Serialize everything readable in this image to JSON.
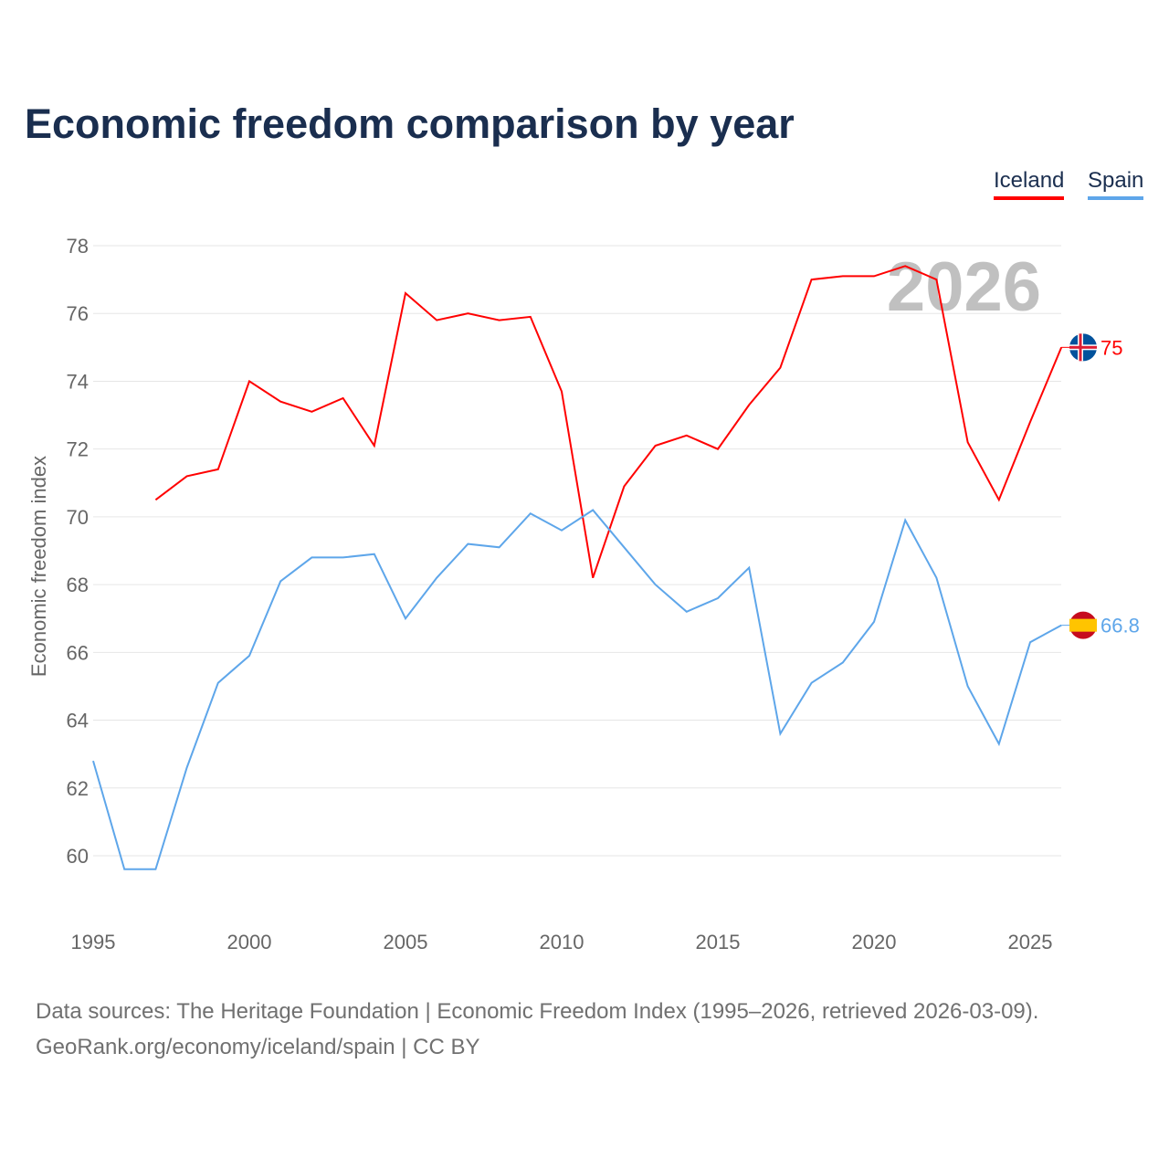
{
  "title": "Economic freedom comparison by year",
  "legend": [
    "Iceland",
    "Spain"
  ],
  "source_line1": "Data sources: The Heritage Foundation | Economic Freedom Index (1995–2026, retrieved 2026-03-09).",
  "source_line2": "GeoRank.org/economy/iceland/spain | CC BY",
  "year_watermark": "2026",
  "chart_data": {
    "type": "line",
    "title": "Economic freedom comparison by year",
    "xlabel": "",
    "ylabel": "Economic freedom index",
    "xlim": [
      1995,
      2026
    ],
    "ylim": [
      58,
      79
    ],
    "xticks": [
      1995,
      2000,
      2005,
      2010,
      2015,
      2020,
      2025
    ],
    "yticks": [
      60,
      62,
      64,
      66,
      68,
      70,
      72,
      74,
      76,
      78
    ],
    "grid": true,
    "legend_position": "top-right",
    "x": [
      1995,
      1996,
      1997,
      1998,
      1999,
      2000,
      2001,
      2002,
      2003,
      2004,
      2005,
      2006,
      2007,
      2008,
      2009,
      2010,
      2011,
      2012,
      2013,
      2014,
      2015,
      2016,
      2017,
      2018,
      2019,
      2020,
      2021,
      2022,
      2023,
      2024,
      2025,
      2026
    ],
    "series": [
      {
        "name": "Iceland",
        "color": "#ff0000",
        "end_label": "75",
        "values": [
          null,
          null,
          70.5,
          71.2,
          71.4,
          74.0,
          73.4,
          73.1,
          73.5,
          72.1,
          76.6,
          75.8,
          76.0,
          75.8,
          75.9,
          73.7,
          68.2,
          70.9,
          72.1,
          72.4,
          72.0,
          73.3,
          74.4,
          77.0,
          77.1,
          77.1,
          77.4,
          77.0,
          72.2,
          70.5,
          72.8,
          75.0
        ]
      },
      {
        "name": "Spain",
        "color": "#5ea6ea",
        "end_label": "66.8",
        "values": [
          62.8,
          59.6,
          59.6,
          62.6,
          65.1,
          65.9,
          68.1,
          68.8,
          68.8,
          68.9,
          67.0,
          68.2,
          69.2,
          69.1,
          70.1,
          69.6,
          70.2,
          69.1,
          68.0,
          67.2,
          67.6,
          68.5,
          63.6,
          65.1,
          65.7,
          66.9,
          69.9,
          68.2,
          65.0,
          63.3,
          66.3,
          66.8
        ]
      }
    ]
  }
}
